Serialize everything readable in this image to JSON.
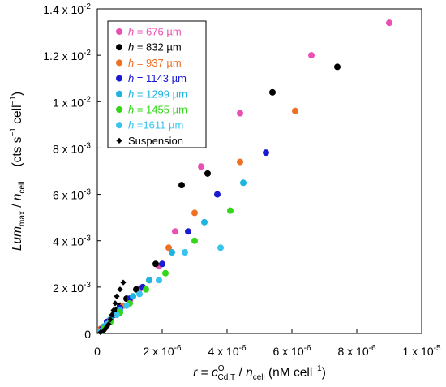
{
  "chart_data": {
    "type": "scatter",
    "xlabel": {
      "var": "r",
      "eq": " = ",
      "c": "c",
      "c_sup": "O",
      "c_sub": "Cd,T",
      "div": " / ",
      "n": "n",
      "n_sub": "cell",
      "unit_open": "  (nM cell",
      "unit_exp": "−1",
      "unit_close": ")"
    },
    "ylabel": {
      "lum": "Lum",
      "lum_sub": "max",
      "div": " / ",
      "n": "n",
      "n_sub": "cell",
      "unit_open": "(cts s",
      "unit_exp1": "−1",
      "unit_mid": " cell",
      "unit_exp2": "−1",
      "unit_close": ")"
    },
    "xlim": [
      0,
      1e-05
    ],
    "ylim": [
      0,
      0.014
    ],
    "x_ticks": [
      {
        "value": 0,
        "label": "0",
        "exp": ""
      },
      {
        "value": 2e-06,
        "label": "2 x 10",
        "exp": "-6"
      },
      {
        "value": 4e-06,
        "label": "4 x 10",
        "exp": "-6"
      },
      {
        "value": 6e-06,
        "label": "6 x 10",
        "exp": "-6"
      },
      {
        "value": 8e-06,
        "label": "8 x 10",
        "exp": "-6"
      },
      {
        "value": 1e-05,
        "label": "1 x 10",
        "exp": "-5"
      }
    ],
    "y_ticks": [
      {
        "value": 0,
        "label": "0",
        "exp": ""
      },
      {
        "value": 0.002,
        "label": "2 x 10",
        "exp": "-3"
      },
      {
        "value": 0.004,
        "label": "4 x 10",
        "exp": "-3"
      },
      {
        "value": 0.006,
        "label": "6 x 10",
        "exp": "-3"
      },
      {
        "value": 0.008,
        "label": "8 x 10",
        "exp": "-3"
      },
      {
        "value": 0.01,
        "label": "1 x 10",
        "exp": "-2"
      },
      {
        "value": 0.012,
        "label": "1.2 x 10",
        "exp": "-2"
      },
      {
        "value": 0.014,
        "label": "1.4 x 10",
        "exp": "-2"
      }
    ],
    "legend_position": "top-left",
    "grid": false,
    "series": [
      {
        "h": "h",
        "rest": " = 676 µm",
        "color": "#ea4fb4",
        "marker": "circle",
        "points": [
          [
            9e-06,
            0.0134
          ],
          [
            6.6e-06,
            0.012
          ],
          [
            4.4e-06,
            0.0095
          ],
          [
            3.2e-06,
            0.0072
          ],
          [
            2.4e-06,
            0.0044
          ],
          [
            1.9e-06,
            0.0029
          ],
          [
            1.3e-06,
            0.0019
          ],
          [
            1e-06,
            0.0014
          ],
          [
            7e-07,
            0.0011
          ],
          [
            5e-07,
            0.0008
          ],
          [
            3e-07,
            0.0005
          ],
          [
            1.5e-07,
            0.0002
          ]
        ]
      },
      {
        "h": "h",
        "rest": " = 832 µm",
        "color": "#000000",
        "marker": "circle",
        "points": [
          [
            7.4e-06,
            0.0115
          ],
          [
            5.4e-06,
            0.0104
          ],
          [
            3.4e-06,
            0.0069
          ],
          [
            2.6e-06,
            0.0064
          ],
          [
            1.8e-06,
            0.003
          ],
          [
            1.2e-06,
            0.0019
          ],
          [
            9e-07,
            0.0015
          ],
          [
            7e-07,
            0.0012
          ],
          [
            6e-07,
            0.001
          ],
          [
            5e-07,
            0.0008
          ],
          [
            4e-07,
            0.0006
          ],
          [
            3e-07,
            0.0004
          ],
          [
            2e-07,
            0.0002
          ],
          [
            1e-07,
            0.0001
          ]
        ]
      },
      {
        "h": "h",
        "rest": " = 937 µm",
        "color": "#f07023",
        "marker": "circle",
        "points": [
          [
            6.1e-06,
            0.0096
          ],
          [
            4.4e-06,
            0.0074
          ],
          [
            3e-06,
            0.0052
          ],
          [
            2.2e-06,
            0.0037
          ],
          [
            1.6e-06,
            0.0023
          ],
          [
            1.1e-06,
            0.0016
          ],
          [
            8e-07,
            0.0012
          ],
          [
            5e-07,
            0.0008
          ],
          [
            3e-07,
            0.0005
          ],
          [
            1e-07,
            0.0002
          ]
        ]
      },
      {
        "h": "h",
        "rest": " = 1143 µm",
        "color": "#1a1ad0",
        "marker": "circle",
        "points": [
          [
            5.2e-06,
            0.0078
          ],
          [
            3.7e-06,
            0.006
          ],
          [
            2.8e-06,
            0.0044
          ],
          [
            2e-06,
            0.003
          ],
          [
            1.4e-06,
            0.002
          ],
          [
            1e-06,
            0.0015
          ],
          [
            7e-07,
            0.0011
          ],
          [
            5e-07,
            0.0008
          ],
          [
            3e-07,
            0.0005
          ],
          [
            1.5e-07,
            0.0002
          ]
        ]
      },
      {
        "h": "h",
        "rest": " = 1299 µm",
        "color": "#1eb4e0",
        "marker": "circle",
        "points": [
          [
            4.5e-06,
            0.0065
          ],
          [
            3.3e-06,
            0.0048
          ],
          [
            2.3e-06,
            0.0035
          ],
          [
            1.6e-06,
            0.0023
          ],
          [
            1.1e-06,
            0.0016
          ],
          [
            7e-07,
            0.001
          ],
          [
            4e-07,
            0.0006
          ],
          [
            2e-07,
            0.0003
          ]
        ]
      },
      {
        "h": "h",
        "rest": " = 1455 µm",
        "color": "#33d619",
        "marker": "circle",
        "points": [
          [
            4.1e-06,
            0.0053
          ],
          [
            3e-06,
            0.004
          ],
          [
            2.1e-06,
            0.0026
          ],
          [
            1.5e-06,
            0.0019
          ],
          [
            1e-06,
            0.0013
          ],
          [
            7e-07,
            0.0009
          ],
          [
            4e-07,
            0.0005
          ],
          [
            2e-07,
            0.0002
          ]
        ]
      },
      {
        "h": "h",
        "rest": " =1611 µm",
        "color": "#38c4ef",
        "marker": "circle",
        "points": [
          [
            3.8e-06,
            0.0037
          ],
          [
            2.7e-06,
            0.0035
          ],
          [
            1.9e-06,
            0.0023
          ],
          [
            1.3e-06,
            0.0017
          ],
          [
            9e-07,
            0.0012
          ],
          [
            6e-07,
            0.0008
          ],
          [
            3e-07,
            0.0004
          ],
          [
            1e-07,
            0.0001
          ]
        ]
      },
      {
        "h": "",
        "rest": "Suspension",
        "color": "#000000",
        "marker": "diamond",
        "points": [
          [
            8e-07,
            0.0022
          ],
          [
            7e-07,
            0.0019
          ],
          [
            6e-07,
            0.0016
          ],
          [
            5.5e-07,
            0.0013
          ],
          [
            5e-07,
            0.001
          ],
          [
            4.5e-07,
            0.0008
          ],
          [
            4e-07,
            0.0006
          ],
          [
            3.5e-07,
            0.0004
          ],
          [
            3e-07,
            0.0003
          ],
          [
            2.5e-07,
            0.0002
          ],
          [
            2e-07,
            0.00012
          ],
          [
            1e-07,
            5e-05
          ]
        ]
      }
    ]
  }
}
